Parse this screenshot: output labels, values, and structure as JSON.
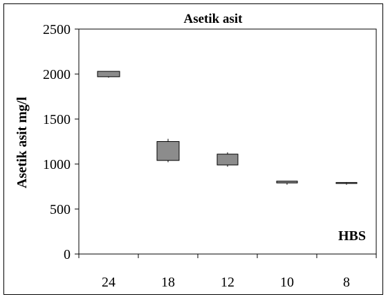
{
  "chart_data": {
    "type": "box",
    "title": "Asetik asit",
    "ylabel": "Asetik asit mg/l",
    "xlabel": "",
    "annotation": "HBS",
    "categories": [
      "24",
      "18",
      "12",
      "10",
      "8"
    ],
    "ylim": [
      0,
      2500
    ],
    "yticks": [
      0,
      500,
      1000,
      1500,
      2000,
      2500
    ],
    "grid": false,
    "box_color": "#8c8c8c",
    "boxes": [
      {
        "category": "24",
        "q1": 1970,
        "q3": 2030,
        "min": 1960,
        "max": 2030
      },
      {
        "category": "18",
        "q1": 1040,
        "q3": 1250,
        "min": 1020,
        "max": 1280
      },
      {
        "category": "12",
        "q1": 990,
        "q3": 1110,
        "min": 970,
        "max": 1130
      },
      {
        "category": "10",
        "q1": 790,
        "q3": 810,
        "min": 770,
        "max": 810
      },
      {
        "category": "8",
        "q1": 790,
        "q3": 795,
        "min": 770,
        "max": 800
      }
    ]
  }
}
